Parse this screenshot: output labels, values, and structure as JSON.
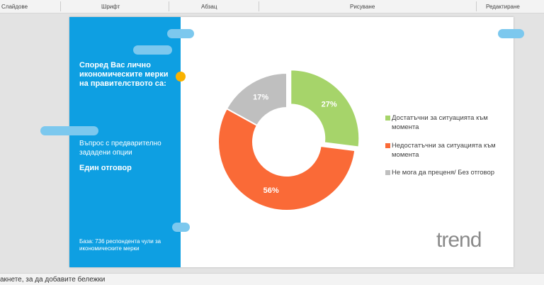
{
  "ribbon": {
    "groups": [
      "Слайдове",
      "Шрифт",
      "Абзац",
      "Рисуване",
      "Редактиране"
    ]
  },
  "slide": {
    "question": "Според Вас лично икономическите мерки на правителството са:",
    "question_type": "Въпрос с предварително зададени опции",
    "answer_mode": "Един отговор",
    "base": "База: 736 респондента чули за икономическите мерки",
    "logo": "trend",
    "chart": {
      "type": "donut",
      "categories": [
        "Достатъчни за ситуацията към момента",
        "Недостатъчни за ситуацията към момента",
        "Не мога да преценя/ Без отговор"
      ],
      "values": [
        27,
        56,
        17
      ],
      "value_labels": [
        "27%",
        "56%",
        "17%"
      ],
      "colors": [
        "#a6d46a",
        "#fa6a37",
        "#bfbfbf"
      ],
      "exploded": [
        true,
        false,
        false
      ]
    }
  },
  "notes": "акнете, за да добавите бележки"
}
